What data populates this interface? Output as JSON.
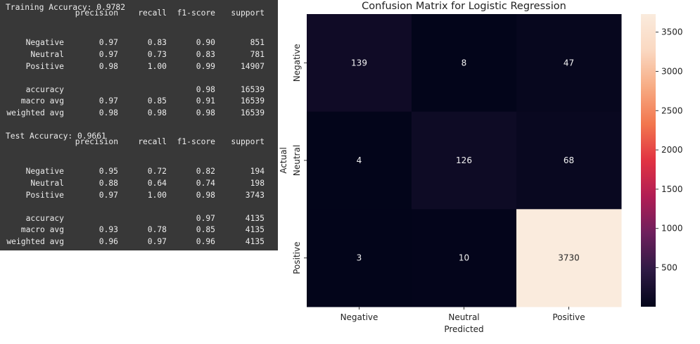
{
  "report": {
    "train_header": "Training Accuracy: 0.9782",
    "test_header": "Test Accuracy: 0.9661",
    "columns": [
      "precision",
      "recall",
      "f1-score",
      "support"
    ],
    "train_rows": [
      {
        "label": "Negative",
        "cells": [
          "0.97",
          "0.83",
          "0.90",
          "851"
        ]
      },
      {
        "label": "Neutral",
        "cells": [
          "0.97",
          "0.73",
          "0.83",
          "781"
        ]
      },
      {
        "label": "Positive",
        "cells": [
          "0.98",
          "1.00",
          "0.99",
          "14907"
        ]
      }
    ],
    "train_summary": [
      {
        "label": "accuracy",
        "cells": [
          "",
          "",
          "0.98",
          "16539"
        ]
      },
      {
        "label": "macro avg",
        "cells": [
          "0.97",
          "0.85",
          "0.91",
          "16539"
        ]
      },
      {
        "label": "weighted avg",
        "cells": [
          "0.98",
          "0.98",
          "0.98",
          "16539"
        ]
      }
    ],
    "test_rows": [
      {
        "label": "Negative",
        "cells": [
          "0.95",
          "0.72",
          "0.82",
          "194"
        ]
      },
      {
        "label": "Neutral",
        "cells": [
          "0.88",
          "0.64",
          "0.74",
          "198"
        ]
      },
      {
        "label": "Positive",
        "cells": [
          "0.97",
          "1.00",
          "0.98",
          "3743"
        ]
      }
    ],
    "test_summary": [
      {
        "label": "accuracy",
        "cells": [
          "",
          "",
          "0.97",
          "4135"
        ]
      },
      {
        "label": "macro avg",
        "cells": [
          "0.93",
          "0.78",
          "0.85",
          "4135"
        ]
      },
      {
        "label": "weighted avg",
        "cells": [
          "0.96",
          "0.97",
          "0.96",
          "4135"
        ]
      }
    ]
  },
  "chart_data": {
    "type": "heatmap",
    "title": "Confusion Matrix for Logistic Regression",
    "xlabel": "Predicted",
    "ylabel": "Actual",
    "x_categories": [
      "Negative",
      "Neutral",
      "Positive"
    ],
    "y_categories": [
      "Negative",
      "Neutral",
      "Positive"
    ],
    "values": [
      [
        139,
        8,
        47
      ],
      [
        4,
        126,
        68
      ],
      [
        3,
        10,
        3730
      ]
    ],
    "colorbar": {
      "min": 3,
      "max": 3730,
      "ticks": [
        500,
        1000,
        1500,
        2000,
        2500,
        3000,
        3500
      ]
    },
    "colormap": [
      "#03051a",
      "#2e1a44",
      "#6d1f5d",
      "#b01d55",
      "#e13342",
      "#f2774e",
      "#f7ab83",
      "#fad8c1",
      "#faebdd"
    ]
  }
}
